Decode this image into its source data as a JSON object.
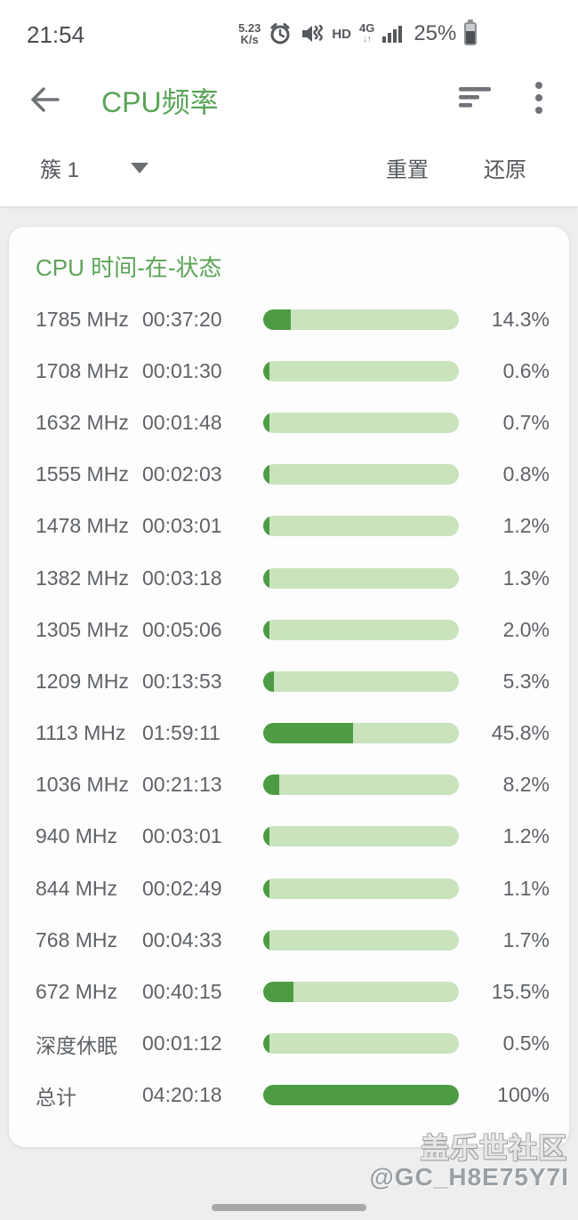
{
  "status_bar": {
    "time": "21:54",
    "net_speed_value": "5.23",
    "net_speed_unit": "K/s",
    "hd": "HD",
    "net_type": "4G",
    "net_arrows": "↓↑",
    "battery_percent": "25%"
  },
  "app_bar": {
    "title": "CPU频率"
  },
  "toolbar": {
    "cluster_selected": "簇 1",
    "reset_label": "重置",
    "restore_label": "还原"
  },
  "card": {
    "title": "CPU 时间-在-状态",
    "rows": [
      {
        "label": "1785 MHz",
        "time": "00:37:20",
        "pct": "14.3%",
        "pct_value": 14.3
      },
      {
        "label": "1708 MHz",
        "time": "00:01:30",
        "pct": "0.6%",
        "pct_value": 0.6
      },
      {
        "label": "1632 MHz",
        "time": "00:01:48",
        "pct": "0.7%",
        "pct_value": 0.7
      },
      {
        "label": "1555 MHz",
        "time": "00:02:03",
        "pct": "0.8%",
        "pct_value": 0.8
      },
      {
        "label": "1478 MHz",
        "time": "00:03:01",
        "pct": "1.2%",
        "pct_value": 1.2
      },
      {
        "label": "1382 MHz",
        "time": "00:03:18",
        "pct": "1.3%",
        "pct_value": 1.3
      },
      {
        "label": "1305 MHz",
        "time": "00:05:06",
        "pct": "2.0%",
        "pct_value": 2.0
      },
      {
        "label": "1209 MHz",
        "time": "00:13:53",
        "pct": "5.3%",
        "pct_value": 5.3
      },
      {
        "label": "1113 MHz",
        "time": "01:59:11",
        "pct": "45.8%",
        "pct_value": 45.8
      },
      {
        "label": "1036 MHz",
        "time": "00:21:13",
        "pct": "8.2%",
        "pct_value": 8.2
      },
      {
        "label": "940 MHz",
        "time": "00:03:01",
        "pct": "1.2%",
        "pct_value": 1.2
      },
      {
        "label": "844 MHz",
        "time": "00:02:49",
        "pct": "1.1%",
        "pct_value": 1.1
      },
      {
        "label": "768 MHz",
        "time": "00:04:33",
        "pct": "1.7%",
        "pct_value": 1.7
      },
      {
        "label": "672 MHz",
        "time": "00:40:15",
        "pct": "15.5%",
        "pct_value": 15.5
      },
      {
        "label": "深度休眠",
        "time": "00:01:12",
        "pct": "0.5%",
        "pct_value": 0.5
      },
      {
        "label": "总计",
        "time": "04:20:18",
        "pct": "100%",
        "pct_value": 100
      }
    ]
  },
  "watermark": {
    "line1": "盖乐世社区",
    "line2": "@GC_H8E75Y7I"
  },
  "colors": {
    "accent_green": "#59a457",
    "bar_fill": "#4d9c43",
    "bar_track": "#c9e3bd",
    "text_gray": "#5f6368",
    "page_bg": "#eeeeee"
  }
}
